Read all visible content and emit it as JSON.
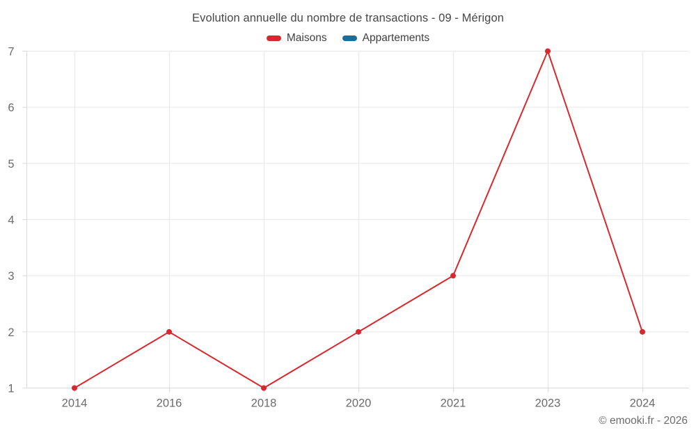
{
  "header": {
    "title": "Evolution annuelle du nombre de transactions - 09 - Mérigon"
  },
  "footer": {
    "copyright": "© emooki.fr - 2026"
  },
  "chart_data": {
    "type": "line",
    "title": "Evolution annuelle du nombre de transactions - 09 - Mérigon",
    "categories": [
      "2014",
      "2016",
      "2018",
      "2020",
      "2021",
      "2023",
      "2024"
    ],
    "series": [
      {
        "name": "Maisons",
        "color": "#d7282e",
        "values": [
          1,
          2,
          1,
          2,
          3,
          7,
          2
        ]
      },
      {
        "name": "Appartements",
        "color": "#1a6d9e",
        "values": []
      }
    ],
    "xlabel": "",
    "ylabel": "",
    "ylim": [
      1,
      7
    ],
    "yticks": [
      1,
      2,
      3,
      4,
      5,
      6,
      7
    ],
    "grid": true,
    "legend_position": "top",
    "marker_radius": 4,
    "line_width": 2,
    "grid_color": "#e8e8e8",
    "axis_color": "#d9d9d9"
  }
}
